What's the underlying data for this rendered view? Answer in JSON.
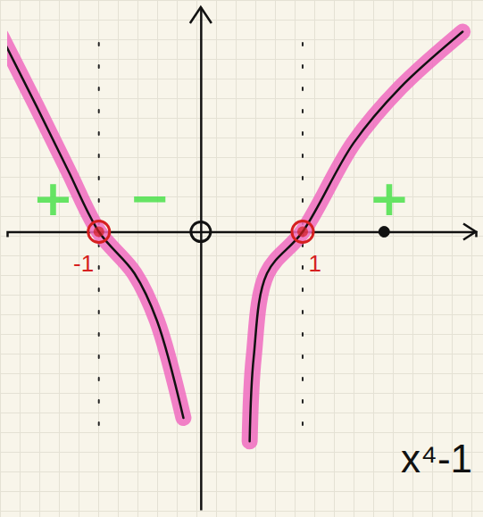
{
  "chart_data": {
    "type": "line",
    "title": "x⁴-1",
    "xlim": [
      -1.9,
      2.7
    ],
    "ylim": [
      -2.6,
      2.1
    ],
    "xticks": [
      -1,
      1
    ],
    "yticks": [],
    "tick_labels": "x",
    "grid": true,
    "annotations": [
      "+",
      "−",
      "+"
    ],
    "series": [
      {
        "type": "line",
        "color": "#111111",
        "x": [
          -1.96,
          -1.61,
          -1.3,
          -1.0,
          -0.65,
          -0.43,
          -0.17,
          0,
          0.48,
          0.52,
          0.65,
          1.0,
          1.5,
          1.96,
          2.57
        ],
        "values": [
          1.83,
          1.17,
          0.57,
          0.0,
          -0.39,
          -0.83,
          -1.74,
          null,
          -1.96,
          -1.17,
          -0.39,
          0.0,
          0.83,
          1.35,
          1.87
        ]
      },
      {
        "type": "scatter",
        "marker": "circle",
        "color": "#d62020",
        "x": [
          -1,
          1
        ],
        "values": [
          0,
          0
        ]
      },
      {
        "type": "scatter",
        "marker": "open-circle",
        "color": "#111111",
        "x": [
          0
        ],
        "values": [
          0
        ]
      },
      {
        "type": "scatter",
        "marker": "dot",
        "color": "#111111",
        "x": [
          1.8
        ],
        "values": [
          0
        ]
      }
    ]
  }
}
